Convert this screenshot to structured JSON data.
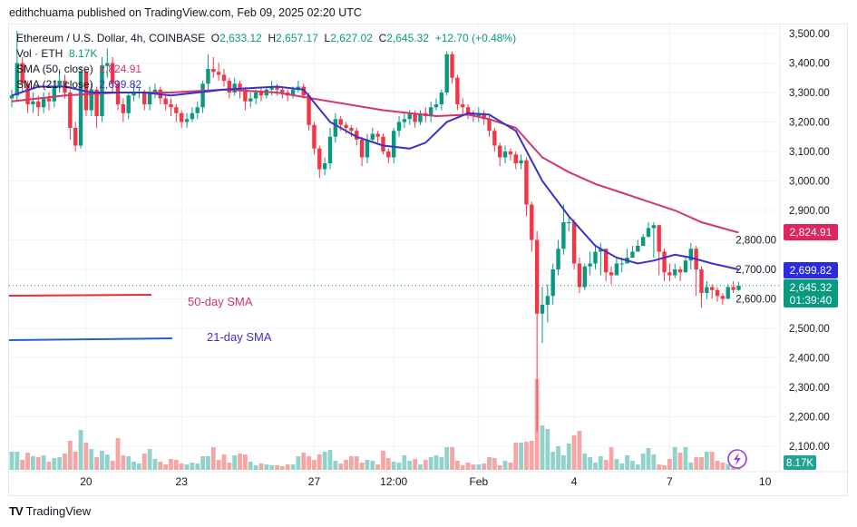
{
  "header": {
    "published": "edithchuama published on TradingView.com, Feb 09, 2025 02:20 UTC"
  },
  "legend": {
    "symbol": "Ethereum / U.S. Dollar, 4h, COINBASE",
    "o_label": "O",
    "o": "2,633.12",
    "h_label": "H",
    "h": "2,657.17",
    "l_label": "L",
    "l": "2,627.02",
    "c_label": "C",
    "c": "2,645.32",
    "change": "+12.70 (+0.48%)",
    "vol_label": "Vol · ETH",
    "vol": "8.17K",
    "sma50_label": "SMA (50, close)",
    "sma50": "2,824.91",
    "sma21_label": "SMA (21, close)",
    "sma21": "2,699.82"
  },
  "annotations": {
    "sma50": "50-day SMA",
    "sma21": "21-day SMA"
  },
  "price_labels": {
    "sma50": "2,824.91",
    "sma21": "2,699.82",
    "last": "2,645.32",
    "countdown": "01:39:40",
    "volume": "8.17K"
  },
  "footer": {
    "brand": "TradingView"
  },
  "colors": {
    "up": "#089981",
    "down": "#f23645",
    "up_vol": "#92d2cc",
    "down_vol": "#f5a6a4",
    "sma50": "#d6336c",
    "sma21": "#3a32c8"
  },
  "chart_data": {
    "type": "candlestick",
    "title": "Ethereum / U.S. Dollar, 4h, COINBASE",
    "ylim": [
      2050,
      3550
    ],
    "y_ticks": [
      "3,500.00",
      "3,400.00",
      "3,300.00",
      "3,200.00",
      "3,100.00",
      "3,000.00",
      "2,900.00",
      "2,800.00",
      "2,700.00",
      "2,600.00",
      "2,500.00",
      "2,400.00",
      "2,300.00",
      "2,200.00",
      "2,100.00"
    ],
    "y_tick_values": [
      3500,
      3400,
      3300,
      3200,
      3100,
      3000,
      2900,
      2800,
      2700,
      2600,
      2500,
      2400,
      2300,
      2200,
      2100
    ],
    "x_ticks": [
      {
        "label": "20",
        "index": 14
      },
      {
        "label": "23",
        "index": 32
      },
      {
        "label": "27",
        "index": 57
      },
      {
        "label": "12:00",
        "index": 72
      },
      {
        "label": "Feb",
        "index": 88
      },
      {
        "label": "4",
        "index": 106
      },
      {
        "label": "7",
        "index": 124
      },
      {
        "label": "10",
        "index": 142
      }
    ],
    "first_open": 3280,
    "close": [
      3290,
      3400,
      3330,
      3260,
      3270,
      3250,
      3280,
      3270,
      3320,
      3340,
      3300,
      3180,
      3120,
      3370,
      3240,
      3310,
      3220,
      3390,
      3400,
      3330,
      3260,
      3230,
      3290,
      3300,
      3300,
      3260,
      3300,
      3310,
      3280,
      3260,
      3250,
      3230,
      3200,
      3210,
      3230,
      3250,
      3330,
      3380,
      3370,
      3360,
      3340,
      3300,
      3330,
      3310,
      3270,
      3280,
      3300,
      3290,
      3310,
      3320,
      3310,
      3300,
      3290,
      3310,
      3320,
      3290,
      3190,
      3110,
      3040,
      3060,
      3150,
      3210,
      3190,
      3180,
      3170,
      3140,
      3080,
      3140,
      3160,
      3150,
      3100,
      3080,
      3170,
      3200,
      3210,
      3230,
      3200,
      3230,
      3220,
      3250,
      3260,
      3300,
      3430,
      3350,
      3260,
      3250,
      3230,
      3220,
      3230,
      3210,
      3170,
      3120,
      3080,
      3100,
      3090,
      3060,
      3070,
      2920,
      2800,
      2550,
      2580,
      2610,
      2700,
      2770,
      2860,
      2860,
      2720,
      2640,
      2710,
      2720,
      2760,
      2770,
      2690,
      2680,
      2720,
      2720,
      2740,
      2760,
      2780,
      2810,
      2840,
      2850,
      2760,
      2690,
      2680,
      2700,
      2690,
      2730,
      2770,
      2700,
      2620,
      2640,
      2630,
      2610,
      2600,
      2640,
      2630,
      2645
    ],
    "high": [
      3310,
      3510,
      3420,
      3340,
      3300,
      3290,
      3300,
      3300,
      3340,
      3380,
      3360,
      3310,
      3200,
      3390,
      3380,
      3330,
      3320,
      3420,
      3450,
      3420,
      3340,
      3280,
      3300,
      3330,
      3320,
      3310,
      3320,
      3330,
      3320,
      3290,
      3280,
      3260,
      3240,
      3230,
      3250,
      3270,
      3340,
      3430,
      3420,
      3400,
      3380,
      3350,
      3350,
      3340,
      3320,
      3300,
      3310,
      3320,
      3320,
      3340,
      3330,
      3320,
      3310,
      3320,
      3340,
      3330,
      3300,
      3200,
      3120,
      3080,
      3180,
      3230,
      3220,
      3200,
      3190,
      3180,
      3150,
      3160,
      3180,
      3170,
      3160,
      3110,
      3180,
      3220,
      3230,
      3240,
      3240,
      3240,
      3250,
      3270,
      3280,
      3310,
      3440,
      3440,
      3360,
      3280,
      3260,
      3240,
      3250,
      3240,
      3220,
      3180,
      3130,
      3120,
      3110,
      3100,
      3090,
      3080,
      2930,
      2830,
      2640,
      2650,
      2720,
      2800,
      2920,
      2880,
      2870,
      2740,
      2720,
      2760,
      2780,
      2790,
      2770,
      2710,
      2740,
      2740,
      2770,
      2780,
      2800,
      2820,
      2860,
      2860,
      2850,
      2770,
      2720,
      2720,
      2710,
      2740,
      2790,
      2780,
      2710,
      2660,
      2650,
      2640,
      2620,
      2650,
      2660,
      2657
    ],
    "low": [
      3250,
      3270,
      3300,
      3230,
      3230,
      3220,
      3230,
      3240,
      3250,
      3300,
      3280,
      3140,
      3100,
      3110,
      3220,
      3220,
      3180,
      3200,
      3350,
      3300,
      3240,
      3200,
      3210,
      3270,
      3280,
      3240,
      3240,
      3280,
      3260,
      3240,
      3220,
      3200,
      3180,
      3180,
      3200,
      3210,
      3230,
      3310,
      3350,
      3340,
      3320,
      3280,
      3290,
      3280,
      3240,
      3250,
      3260,
      3270,
      3280,
      3290,
      3290,
      3280,
      3270,
      3280,
      3300,
      3280,
      3170,
      3090,
      3010,
      3020,
      3040,
      3130,
      3170,
      3160,
      3150,
      3120,
      3050,
      3060,
      3130,
      3130,
      3090,
      3060,
      3060,
      3150,
      3180,
      3190,
      3180,
      3190,
      3200,
      3200,
      3240,
      3240,
      3290,
      3330,
      3240,
      3220,
      3210,
      3200,
      3200,
      3190,
      3150,
      3100,
      3050,
      3060,
      3070,
      3040,
      3040,
      2880,
      2760,
      2150,
      2450,
      2520,
      2580,
      2680,
      2750,
      2830,
      2700,
      2620,
      2630,
      2680,
      2700,
      2680,
      2660,
      2650,
      2680,
      2690,
      2720,
      2740,
      2760,
      2780,
      2820,
      2740,
      2680,
      2660,
      2660,
      2670,
      2660,
      2690,
      2700,
      2610,
      2570,
      2600,
      2600,
      2590,
      2580,
      2600,
      2620,
      2627
    ],
    "volume_k": [
      20,
      20,
      11,
      19,
      15,
      14,
      16,
      9,
      13,
      14,
      18,
      32,
      20,
      44,
      30,
      23,
      14,
      21,
      17,
      10,
      35,
      16,
      15,
      9,
      7,
      18,
      23,
      12,
      9,
      6,
      12,
      11,
      7,
      6,
      8,
      7,
      15,
      15,
      25,
      11,
      17,
      8,
      16,
      18,
      17,
      9,
      5,
      7,
      6,
      5,
      5,
      4,
      6,
      6,
      15,
      19,
      15,
      11,
      17,
      20,
      22,
      10,
      7,
      11,
      15,
      15,
      8,
      11,
      10,
      6,
      21,
      13,
      9,
      8,
      16,
      10,
      12,
      6,
      11,
      14,
      16,
      14,
      25,
      25,
      10,
      5,
      8,
      6,
      6,
      7,
      14,
      13,
      5,
      10,
      8,
      30,
      30,
      31,
      32,
      100,
      49,
      45,
      20,
      26,
      16,
      29,
      38,
      43,
      18,
      14,
      8,
      15,
      11,
      25,
      12,
      7,
      16,
      10,
      6,
      18,
      24,
      17,
      6,
      5,
      12,
      25,
      19,
      25,
      8,
      14,
      14,
      20,
      20,
      10,
      8,
      6,
      8,
      9
    ],
    "sma50": [
      [
        0,
        3270
      ],
      [
        10,
        3290
      ],
      [
        20,
        3300
      ],
      [
        30,
        3300
      ],
      [
        40,
        3310
      ],
      [
        50,
        3300
      ],
      [
        60,
        3270
      ],
      [
        70,
        3240
      ],
      [
        80,
        3220
      ],
      [
        86,
        3225
      ],
      [
        90,
        3210
      ],
      [
        95,
        3180
      ],
      [
        100,
        3080
      ],
      [
        105,
        3030
      ],
      [
        110,
        2990
      ],
      [
        115,
        2960
      ],
      [
        120,
        2930
      ],
      [
        125,
        2900
      ],
      [
        130,
        2860
      ],
      [
        137,
        2825
      ]
    ],
    "sma21": [
      [
        0,
        3290
      ],
      [
        5,
        3320
      ],
      [
        10,
        3320
      ],
      [
        15,
        3300
      ],
      [
        20,
        3300
      ],
      [
        25,
        3300
      ],
      [
        30,
        3290
      ],
      [
        40,
        3310
      ],
      [
        50,
        3320
      ],
      [
        55,
        3310
      ],
      [
        60,
        3200
      ],
      [
        65,
        3150
      ],
      [
        70,
        3120
      ],
      [
        75,
        3110
      ],
      [
        78,
        3130
      ],
      [
        82,
        3200
      ],
      [
        86,
        3230
      ],
      [
        90,
        3225
      ],
      [
        95,
        3170
      ],
      [
        100,
        3000
      ],
      [
        105,
        2880
      ],
      [
        110,
        2780
      ],
      [
        114,
        2740
      ],
      [
        118,
        2720
      ],
      [
        121,
        2730
      ],
      [
        125,
        2750
      ],
      [
        128,
        2740
      ],
      [
        132,
        2720
      ],
      [
        137,
        2700
      ]
    ],
    "last_price": 2645.32,
    "grid": true
  }
}
